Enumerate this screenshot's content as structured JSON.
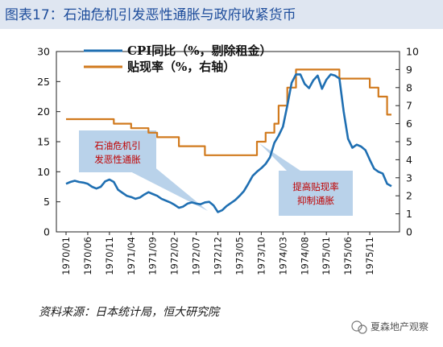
{
  "title": "图表17：石油危机引发恶性通胀与政府收紧货币",
  "source": "资料来源：日本统计局，恒大研究院",
  "watermark": "夏森地产观察",
  "annotations": [
    {
      "name": "oil-crisis-note",
      "lines": [
        "石油危机引",
        "发恶性通胀"
      ]
    },
    {
      "name": "rate-hike-note",
      "lines": [
        "提高贴现率",
        "抑制通胀"
      ]
    }
  ],
  "colors": {
    "cpi": "#1f6fb2",
    "rate": "#d17a1e",
    "title_bg": "#dfe6f1",
    "callout": "#b9d2ea"
  },
  "chart_data": {
    "type": "line",
    "left_axis": {
      "min": 0,
      "max": 30,
      "ticks": [
        "0",
        "5",
        "10",
        "15",
        "20",
        "25",
        "30"
      ]
    },
    "right_axis": {
      "min": 0,
      "max": 10,
      "ticks": [
        "0",
        "1",
        "2",
        "3",
        "4",
        "5",
        "6",
        "7",
        "8",
        "9",
        "10"
      ]
    },
    "x_tick_labels": [
      "1970/01",
      "1970/06",
      "1970/11",
      "1971/04",
      "1971/09",
      "1972/02",
      "1972/07",
      "1972/12",
      "1973/05",
      "1973/10",
      "1974/03",
      "1974/08",
      "1975/01",
      "1975/06",
      "1975/11"
    ],
    "x_tick_step_months": 5,
    "grid": false,
    "legend_position": "top-center",
    "series": [
      {
        "name": "CPI同比（%，剔除租金）",
        "axis": "left",
        "values": [
          8.0,
          8.3,
          8.5,
          8.3,
          8.2,
          8.0,
          7.5,
          7.2,
          7.5,
          8.4,
          8.7,
          8.3,
          7.0,
          6.5,
          6.0,
          5.8,
          5.5,
          5.7,
          6.2,
          6.6,
          6.3,
          6.0,
          5.5,
          5.2,
          4.9,
          4.5,
          4.0,
          4.2,
          4.7,
          4.9,
          4.7,
          4.6,
          4.9,
          5.0,
          4.4,
          3.3,
          3.6,
          4.3,
          4.8,
          5.3,
          6.0,
          6.8,
          8.0,
          9.3,
          10.0,
          10.6,
          11.3,
          12.4,
          14.8,
          16.0,
          17.5,
          21.0,
          24.8,
          26.2,
          26.2,
          24.6,
          23.9,
          25.2,
          26.0,
          23.8,
          25.3,
          26.2,
          26.0,
          25.5,
          20.0,
          15.5,
          14.0,
          14.5,
          14.2,
          13.6,
          12.0,
          10.5,
          10.0,
          9.7,
          8.0,
          7.6
        ]
      },
      {
        "name": "贴现率（%，右轴）",
        "axis": "right",
        "values": [
          6.25,
          6.25,
          6.25,
          6.25,
          6.25,
          6.25,
          6.25,
          6.25,
          6.25,
          6.25,
          6.25,
          6.0,
          6.0,
          6.0,
          6.0,
          5.75,
          5.75,
          5.75,
          5.75,
          5.5,
          5.5,
          5.25,
          5.25,
          5.25,
          5.25,
          5.25,
          4.75,
          4.75,
          4.75,
          4.75,
          4.75,
          4.75,
          4.25,
          4.25,
          4.25,
          4.25,
          4.25,
          4.25,
          4.25,
          4.25,
          4.25,
          4.25,
          4.25,
          4.25,
          5.0,
          5.0,
          5.5,
          5.5,
          6.0,
          7.0,
          7.0,
          8.0,
          8.0,
          9.0,
          9.0,
          9.0,
          9.0,
          9.0,
          9.0,
          9.0,
          9.0,
          9.0,
          9.0,
          8.5,
          8.5,
          8.5,
          8.5,
          8.5,
          8.5,
          8.5,
          8.0,
          8.0,
          7.5,
          7.5,
          6.5,
          6.5
        ]
      }
    ]
  }
}
